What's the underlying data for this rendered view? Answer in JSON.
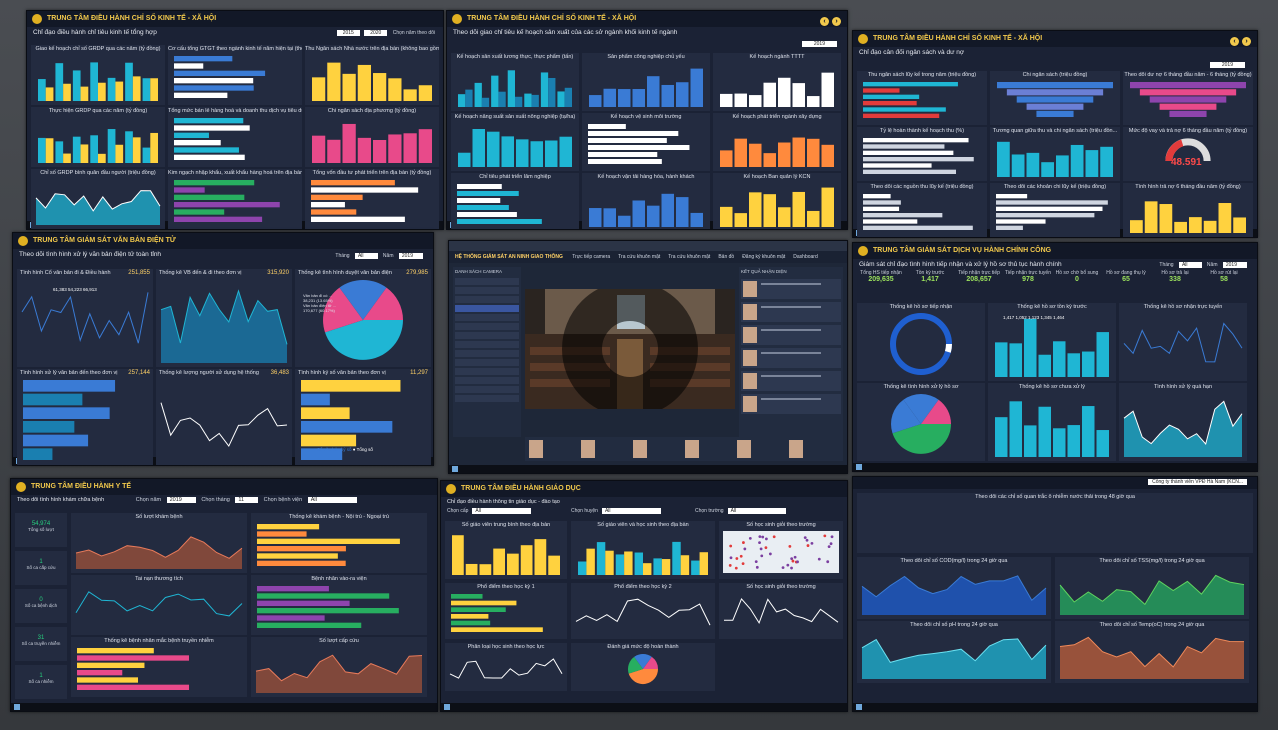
{
  "screens": {
    "econ": {
      "title": "TRUNG TÂM ĐIỀU HÀNH CHỈ SỐ KINH TẾ - XÃ HỘI",
      "subtitle": "Chỉ đạo điều hành chỉ tiêu kinh tế tổng hợp",
      "year_from": "2015",
      "year_to": "2020",
      "year_label": "Chọn năm theo dõi",
      "panels": [
        "Giao kế hoạch chỉ số GRDP qua các năm (tỷ đồng)",
        "Cơ cấu tổng GTGT theo ngành kinh tế năm hiện tại (theo giá hiện hành)",
        "Thu Ngân sách Nhà nước trên địa bàn (không bao gồm số bổ sung từ NSTW) (tỷ đồng)",
        "Thực hiện GRDP qua các năm (tỷ đồng)",
        "Tổng mức bán lẻ hàng hoá và doanh thu dịch vụ tiêu dùng trên địa bàn",
        "Chi ngân sách địa phương (tỷ đồng)",
        "Chỉ số GRDP bình quân đầu người (triệu đồng)",
        "Kim ngạch nhập khẩu, xuất khẩu hàng hoá trên địa bàn (triệu USD)",
        "Tổng vốn đầu tư phát triển trên địa bàn (tỷ đồng)"
      ]
    },
    "sector": {
      "title": "TRUNG TÂM ĐIỀU HÀNH CHỈ SỐ KINH TẾ - XÃ HỘI",
      "subtitle": "Theo dõi giao chỉ tiêu kế hoạch sản xuất của các sở ngành khối kinh tế ngành",
      "year": "2019",
      "year_label": "Chọn năm theo dõi",
      "panels": [
        "Kế hoạch sản xuất lương thực, thực phẩm (tấn)",
        "Sản phẩm công nghiệp chủ yếu",
        "Kế hoạch ngành TTTT",
        "Kế hoạch nâng suất sản xuất nông nghiệp (tạ/ha)",
        "Kế hoạch vệ sinh môi trường",
        "Kế hoạch phát triển ngành xây dựng",
        "Chỉ tiêu phát triển lâm nghiệp",
        "Kế hoạch vận tải hàng hóa, hành khách",
        "Kế hoạch Ban quản lý KCN"
      ]
    },
    "budget": {
      "title": "TRUNG TÂM ĐIỀU HÀNH CHỈ SỐ KINH TẾ - XÃ HỘI",
      "subtitle": "Chỉ đạo cân đối ngân sách và dư nợ",
      "year": "2019",
      "year_label": "Chọn năm theo dõi",
      "panels": [
        "Thu ngân sách lũy kế trong năm (triệu đồng)",
        "Chi ngân sách (triệu đồng)",
        "Theo dõi dư nợ 6 tháng đầu năm - 6 tháng (tỷ đồng)",
        "Tỷ lệ hoàn thành kế hoạch thu (%)",
        "Tương quan giữa thu và chi ngân sách (triệu đồn...",
        "Mức độ vay và trả nợ 6 tháng đầu năm (tỷ đồng)",
        "Theo dõi các nguồn thu lũy kế (triệu đồng)",
        "Theo dõi các khoản chi lũy kế (triệu đồng)",
        "Tình hình trả nợ 6 tháng đầu năm (tỷ đồng)"
      ],
      "gauge_value": "48.591"
    },
    "docs": {
      "title": "TRUNG TÂM GIÁM SÁT VĂN BẢN ĐIỆN TỬ",
      "subtitle": "Theo dõi tình hình xử lý văn bản điện tử toàn tỉnh",
      "month_label": "Tháng",
      "month": "All",
      "year_label": "Năm",
      "year": "2019",
      "panels": [
        {
          "title": "Tình hình Cổ văn bản đi & Điều hành",
          "value": "251,855"
        },
        {
          "title": "Thống kê VB đến & đi theo đơn vị",
          "value": "315,920"
        },
        {
          "title": "Thống kê tình hình duyệt văn bản điện",
          "value": "279,985"
        },
        {
          "title": "Tình hình xử lý văn bản đến theo đơn vị",
          "value": "257,144"
        },
        {
          "title": "Thống kê lượng người sử dụng hệ thống",
          "value": "36,483"
        },
        {
          "title": "Tình hình ký số văn bản theo đơn vị",
          "value": "11,297"
        }
      ],
      "line_labels": [
        "61,383",
        "54,223",
        "66,913"
      ],
      "pie_labels": [
        "Văn bản đi có ...",
        "38,231 (13.65%)",
        "Văn bản điện tử ...",
        "170,677 (60.17%)"
      ],
      "legend": [
        "Số văn bản ký số",
        "Tổng số"
      ]
    },
    "video": {
      "title": "HỆ THỐNG GIÁM SÁT AN NINH GIAO THÔNG",
      "tabs": [
        "Trực tiếp camera",
        "Tra cứu khuôn mặt",
        "Tra cứu khuôn mặt",
        "Bản đồ",
        "Đăng ký khuôn mặt",
        "Dashboard"
      ],
      "sidebar_title": "DANH SÁCH CAMERA",
      "results_title": "KẾT QUẢ NHẬN DIỆN"
    },
    "admin": {
      "title": "TRUNG TÂM GIÁM SÁT DỊCH VỤ HÀNH CHÍNH CÔNG",
      "subtitle": "Giám sát chỉ đạo tình hình tiếp nhận và xử lý hồ sơ thủ tục hành chính",
      "month_label": "Tháng",
      "month": "All",
      "year_label": "Năm",
      "year": "2019",
      "stats": [
        {
          "label": "Tổng HS tiếp nhận",
          "value": "209,635"
        },
        {
          "label": "Tồn kỳ trước",
          "value": "1,417"
        },
        {
          "label": "Tiếp nhận trực tiếp",
          "value": "208,657"
        },
        {
          "label": "Tiếp nhận trực tuyến",
          "value": "978"
        },
        {
          "label": "Hồ sơ chờ bổ sung",
          "value": "0"
        },
        {
          "label": "Hồ sơ đang thụ lý",
          "value": "65"
        },
        {
          "label": "Hồ sơ trả lại",
          "value": "338"
        },
        {
          "label": "Hồ sơ rút lại",
          "value": "58"
        }
      ],
      "panels": [
        "Thống kê hồ sơ tiếp nhận",
        "Thống kê hồ sơ tồn kỳ trước",
        "Thống kê hồ sơ nhận trực tuyến",
        "Thống kê tình hình xử lý hồ sơ",
        "Thống kê hồ sơ chưa xử lý",
        "Tình hình xử lý quá hạn"
      ],
      "bar_labels": [
        "1,417",
        "1,052",
        "1,123",
        "1,345",
        "1,464"
      ]
    },
    "health": {
      "title": "TRUNG TÂM ĐIỀU HÀNH Y TẾ",
      "subtitle": "Theo dõi tình hình khám chữa bệnh",
      "year_label": "Chọn năm",
      "year": "2019",
      "month_label": "Chọn tháng",
      "month": "11",
      "hospital_label": "Chọn bệnh viện",
      "hospital": "All",
      "sidebar": [
        {
          "label": "Tổng số lượt",
          "value": "54,974"
        },
        {
          "label": "Số ca cấp cứu",
          "value": "1"
        },
        {
          "label": "Số ca bệnh dịch",
          "value": "0"
        },
        {
          "label": "Số ca truyền nhiễm",
          "value": "31"
        },
        {
          "label": "Số ca nhiễm",
          "value": "1"
        }
      ],
      "panels": [
        "Số lượt khám bệnh",
        "Thống kê khám bệnh - Nội trú - Ngoại trú",
        "Tai nạn thương tích",
        "Bệnh nhân vào-ra viện",
        "Thống kê bệnh nhân mắc bệnh truyền nhiễm",
        "Số lượt cấp cứu"
      ]
    },
    "edu": {
      "title": "TRUNG TÂM ĐIỀU HÀNH GIÁO DỤC",
      "subtitle": "Chỉ đạo điều hành thông tin giáo dục - đào tạo",
      "filters": [
        {
          "label": "Chọn cấp",
          "value": "All"
        },
        {
          "label": "Chọn huyện",
          "value": "All"
        },
        {
          "label": "Chọn trường",
          "value": "All"
        }
      ],
      "panels": [
        "Số giáo viên trung bình theo địa bàn",
        "Số giáo viên và học sinh theo địa bàn",
        "Số học sinh giỏi theo trường",
        "Phổ điểm theo học kỳ 1",
        "Phổ điểm theo học kỳ 2",
        "Số học sinh giỏi theo trường",
        "Phân loại học sinh theo học lực",
        "Đánh giá mức độ hoàn thành"
      ]
    },
    "env": {
      "company": "Công ty thành viên VPĐ Hà Nam (KCN...",
      "panels": [
        "Theo dõi các chỉ số quan trắc ô nhiễm nước thải trong 48 giờ qua",
        "Theo dõi chỉ số COD(mg/l) trong 24 giờ qua",
        "Theo dõi chỉ số TSS(mg/l) trong 24 giờ qua",
        "Theo dõi chỉ số pH trong 24 giờ qua",
        "Theo dõi chỉ số Temp(oC) trong 24 giờ qua"
      ]
    }
  },
  "colors": {
    "accent_yellow": "#f2c94c",
    "cyan": "#1fb6d4",
    "orange": "#ff8a3d",
    "purple": "#8e44ad",
    "green": "#27ae60",
    "red": "#e23b3b"
  }
}
